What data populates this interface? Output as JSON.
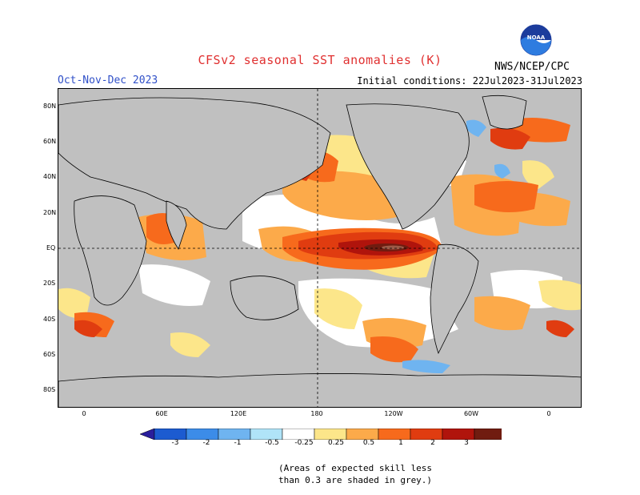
{
  "header": {
    "title": "CFSv2 seasonal SST anomalies (K)",
    "season": "Oct-Nov-Dec 2023",
    "initial_conditions": "Initial conditions: 22Jul2023-31Jul2023",
    "agency": "NWS/NCEP/CPC",
    "logo_text": "NOAA"
  },
  "axes": {
    "lat_labels": [
      "80N",
      "60N",
      "40N",
      "20N",
      "EQ",
      "20S",
      "40S",
      "60S",
      "80S"
    ],
    "lon_labels": [
      "0",
      "60E",
      "120E",
      "180",
      "120W",
      "60W",
      "0"
    ]
  },
  "legend": {
    "tick_labels": [
      "-3",
      "-2",
      "-1",
      "-0.5",
      "-0.25",
      "0.25",
      "0.5",
      "1",
      "2",
      "3"
    ],
    "colors": [
      "#2a1e9c",
      "#1c5bd0",
      "#3c8ce8",
      "#6fb4f0",
      "#b0e4f8",
      "#ffffff",
      "#fce68a",
      "#fcaa4a",
      "#f76a1c",
      "#e03c10",
      "#b0140c",
      "#701c10",
      "#9c5a48"
    ]
  },
  "footnote": {
    "line1": "(Areas of expected skill less",
    "line2": "than 0.3 are shaded in grey.)"
  },
  "map_colors": {
    "land": "#c0c0c0",
    "no_skill": "#c0c0c0",
    "neutral": "#ffffff",
    "warm1": "#fce68a",
    "warm2": "#fcaa4a",
    "warm3": "#f76a1c",
    "warm4": "#e03c10",
    "warm5": "#b0140c",
    "warm6": "#701c10",
    "cool1": "#b0e4f8",
    "cool2": "#6fb4f0"
  }
}
